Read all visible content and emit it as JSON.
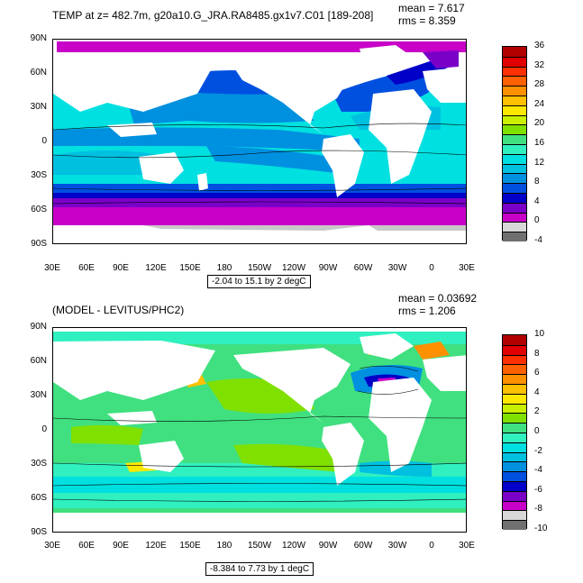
{
  "colors": {
    "scale": [
      "#707070",
      "#d8d8d8",
      "#c800c8",
      "#7a00c8",
      "#0000c8",
      "#0050e0",
      "#0090e0",
      "#00c0e0",
      "#00e0e0",
      "#30f0c0",
      "#40e080",
      "#80e000",
      "#c8f000",
      "#ffe800",
      "#ffc000",
      "#ff9000",
      "#ff6000",
      "#ff3000",
      "#e00000",
      "#b00000"
    ],
    "land": "#ffffff",
    "missing": "#c8c8c8"
  },
  "panels": [
    {
      "title": "TEMP at z= 482.7m, g20a10.G_JRA.RA8485.gx1v7.C01 [189-208]",
      "mean_label": "mean = 7.617",
      "rms_label": "rms = 8.359",
      "range_label": "-2.04 to 15.1 by 2 degC",
      "lat_ticks": [
        "90N",
        "60N",
        "30N",
        "0",
        "30S",
        "60S",
        "90S"
      ],
      "lon_ticks": [
        "30E",
        "60E",
        "90E",
        "120E",
        "150E",
        "180",
        "150W",
        "120W",
        "90W",
        "60W",
        "30W",
        "0",
        "30E"
      ],
      "colorbar_labels": [
        "36",
        "32",
        "28",
        "24",
        "20",
        "16",
        "12",
        "8",
        "4",
        "0",
        "-4"
      ]
    },
    {
      "title": "(MODEL - LEVITUS/PHC2)",
      "mean_label": "mean = 0.03692",
      "rms_label": "rms = 1.206",
      "range_label": "-8.384 to 7.73 by 1 degC",
      "lat_ticks": [
        "90N",
        "60N",
        "30N",
        "0",
        "30S",
        "60S",
        "90S"
      ],
      "lon_ticks": [
        "30E",
        "60E",
        "90E",
        "120E",
        "150E",
        "180",
        "150W",
        "120W",
        "90W",
        "60W",
        "30W",
        "0",
        "30E"
      ],
      "colorbar_labels": [
        "10",
        "8",
        "6",
        "4",
        "2",
        "0",
        "-2",
        "-4",
        "-6",
        "-8",
        "-10"
      ]
    }
  ]
}
